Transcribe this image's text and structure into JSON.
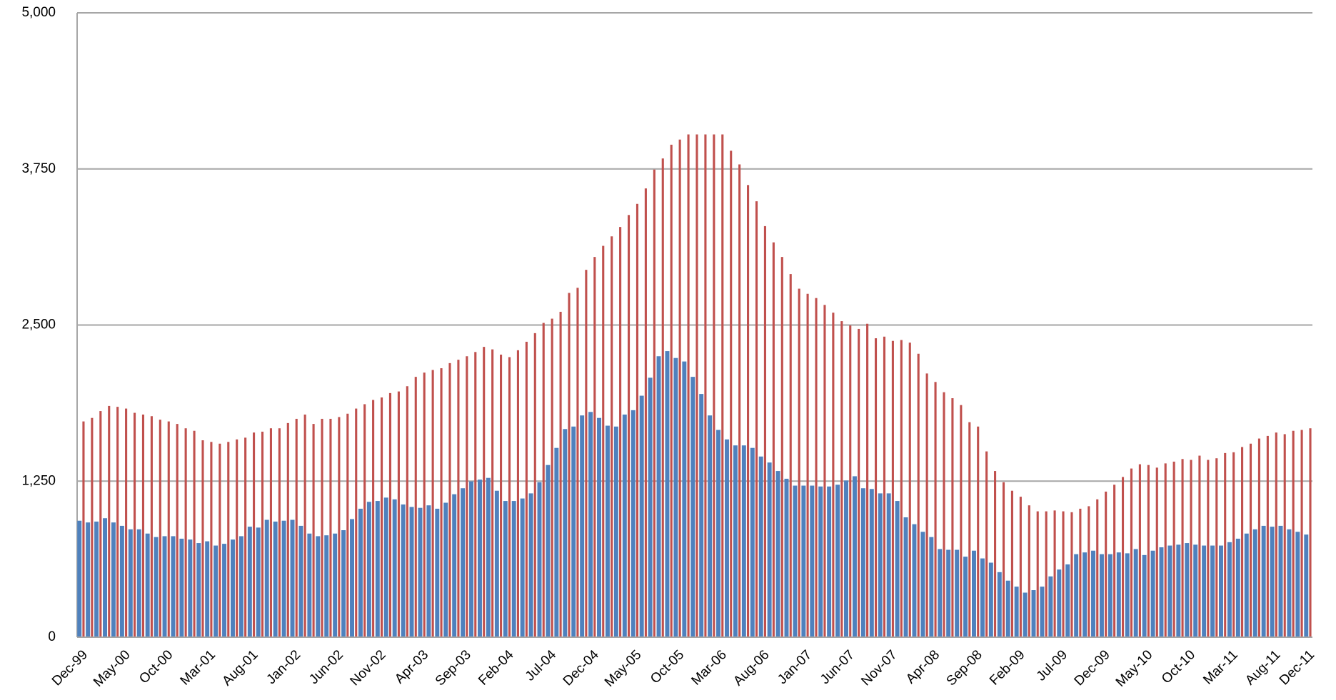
{
  "chart_data": {
    "type": "bar",
    "categories": [
      "Dec-99",
      null,
      null,
      null,
      null,
      "May-00",
      null,
      null,
      null,
      null,
      "Oct-00",
      null,
      null,
      null,
      null,
      "Mar-01",
      null,
      null,
      null,
      null,
      "Aug-01",
      null,
      null,
      null,
      null,
      "Jan-02",
      null,
      null,
      null,
      null,
      "Jun-02",
      null,
      null,
      null,
      null,
      "Nov-02",
      null,
      null,
      null,
      null,
      "Apr-03",
      null,
      null,
      null,
      null,
      "Sep-03",
      null,
      null,
      null,
      null,
      "Feb-04",
      null,
      null,
      null,
      null,
      "Jul-04",
      null,
      null,
      null,
      null,
      "Dec-04",
      null,
      null,
      null,
      null,
      "May-05",
      null,
      null,
      null,
      null,
      "Oct-05",
      null,
      null,
      null,
      null,
      "Mar-06",
      null,
      null,
      null,
      null,
      "Aug-06",
      null,
      null,
      null,
      null,
      "Jan-07",
      null,
      null,
      null,
      null,
      "Jun-07",
      null,
      null,
      null,
      null,
      "Nov-07",
      null,
      null,
      null,
      null,
      "Apr-08",
      null,
      null,
      null,
      null,
      "Sep-08",
      null,
      null,
      null,
      null,
      "Feb-09",
      null,
      null,
      null,
      null,
      "Jul-09",
      null,
      null,
      null,
      null,
      "Dec-09",
      null,
      null,
      null,
      null,
      "May-10",
      null,
      null,
      null,
      null,
      "Oct-10",
      null,
      null,
      null,
      null,
      "Mar-11",
      null,
      null,
      null,
      null,
      "Aug-11",
      null,
      null,
      null,
      "Dec-11"
    ],
    "series": [
      {
        "color": "#4f81bd",
        "values": [
          933,
          919,
          926,
          953,
          919,
          892,
          864,
          864,
          830,
          802,
          809,
          809,
          789,
          782,
          754,
          768,
          734,
          748,
          782,
          809,
          885,
          878,
          940,
          926,
          933,
          940,
          892,
          830,
          809,
          816,
          830,
          857,
          946,
          1029,
          1084,
          1091,
          1118,
          1104,
          1063,
          1043,
          1036,
          1056,
          1029,
          1077,
          1145,
          1193,
          1248,
          1262,
          1276,
          1173,
          1091,
          1091,
          1111,
          1152,
          1241,
          1379,
          1516,
          1667,
          1687,
          1776,
          1804,
          1756,
          1694,
          1687,
          1783,
          1818,
          1934,
          2078,
          2250,
          2291,
          2236,
          2208,
          2085,
          1948,
          1776,
          1660,
          1584,
          1536,
          1536,
          1516,
          1447,
          1399,
          1331,
          1269,
          1214,
          1214,
          1214,
          1207,
          1207,
          1221,
          1255,
          1289,
          1193,
          1187,
          1152,
          1152,
          1091,
          960,
          905,
          844,
          802,
          706,
          700,
          700,
          645,
          693,
          631,
          597,
          521,
          453,
          405,
          357,
          377,
          405,
          487,
          542,
          583,
          665,
          679,
          693,
          665,
          665,
          679,
          672,
          706,
          658,
          693,
          720,
          734,
          741,
          754,
          741,
          734,
          734,
          734,
          761,
          789,
          830,
          864,
          892,
          885,
          892,
          864,
          844,
          822
        ]
      },
      {
        "color": "#c0504d",
        "values": [
          1728,
          1756,
          1811,
          1852,
          1845,
          1831,
          1797,
          1783,
          1770,
          1742,
          1728,
          1708,
          1673,
          1653,
          1577,
          1564,
          1550,
          1564,
          1584,
          1598,
          1639,
          1646,
          1673,
          1673,
          1715,
          1749,
          1783,
          1708,
          1749,
          1749,
          1763,
          1790,
          1831,
          1866,
          1900,
          1920,
          1955,
          1968,
          2010,
          2085,
          2119,
          2140,
          2154,
          2195,
          2222,
          2250,
          2284,
          2325,
          2305,
          2263,
          2243,
          2298,
          2366,
          2435,
          2517,
          2551,
          2606,
          2757,
          2798,
          2942,
          3045,
          3134,
          3210,
          3285,
          3381,
          3470,
          3594,
          3745,
          3834,
          3944,
          3985,
          4026,
          4026,
          4026,
          4026,
          4026,
          3896,
          3786,
          3621,
          3491,
          3292,
          3162,
          3045,
          2908,
          2791,
          2750,
          2716,
          2661,
          2599,
          2531,
          2497,
          2469,
          2510,
          2394,
          2407,
          2373,
          2380,
          2359,
          2270,
          2112,
          2044,
          1962,
          1914,
          1859,
          1722,
          1687,
          1488,
          1331,
          1241,
          1173,
          1125,
          1056,
          1008,
          1008,
          1015,
          1008,
          1001,
          1029,
          1049,
          1104,
          1166,
          1221,
          1283,
          1351,
          1385,
          1379,
          1358,
          1392,
          1406,
          1427,
          1420,
          1454,
          1420,
          1433,
          1475,
          1481,
          1523,
          1550,
          1591,
          1612,
          1639,
          1626,
          1653,
          1660,
          1673
        ]
      }
    ],
    "ylim": [
      0,
      5000
    ],
    "yticks": [
      0,
      {
        "value": 1250,
        "label": "1,250"
      },
      {
        "value": 2500,
        "label": "2,500"
      },
      {
        "value": 3750,
        "label": "3,750"
      },
      {
        "value": 5000,
        "label": "5,000"
      }
    ],
    "grid": true
  }
}
